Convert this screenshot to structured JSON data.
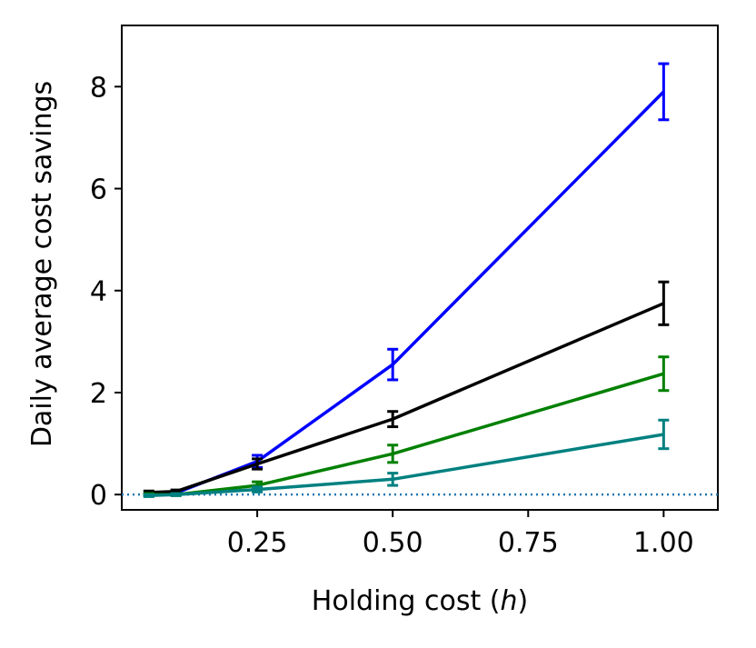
{
  "chart_data": {
    "type": "line",
    "title": "",
    "xlabel_prefix": "Holding cost (",
    "xlabel_var": "h",
    "xlabel_suffix": ")",
    "ylabel": "Daily average cost savings",
    "xlim": [
      0.0,
      1.1
    ],
    "ylim": [
      -0.3,
      9.2
    ],
    "x_ticks": [
      0.25,
      0.5,
      0.75,
      1.0
    ],
    "x_tick_labels": [
      "0.25",
      "0.50",
      "0.75",
      "1.00"
    ],
    "y_ticks": [
      0,
      2,
      4,
      6,
      8
    ],
    "y_tick_labels": [
      "0",
      "2",
      "4",
      "6",
      "8"
    ],
    "reference_line": {
      "y": 0,
      "style": "dotted",
      "color": "#1f77b4"
    },
    "series": [
      {
        "color": "#0000ff",
        "x": [
          0.05,
          0.1,
          0.25,
          0.5,
          1.0
        ],
        "y": [
          0.0,
          0.03,
          0.65,
          2.55,
          7.9
        ],
        "err": [
          0.02,
          0.03,
          0.12,
          0.3,
          0.55
        ]
      },
      {
        "color": "#000000",
        "x": [
          0.05,
          0.1,
          0.25,
          0.5,
          1.0
        ],
        "y": [
          0.04,
          0.06,
          0.6,
          1.48,
          3.75
        ],
        "err": [
          0.03,
          0.03,
          0.1,
          0.15,
          0.42
        ]
      },
      {
        "color": "#008000",
        "x": [
          0.05,
          0.1,
          0.25,
          0.5,
          1.0
        ],
        "y": [
          0.0,
          0.0,
          0.18,
          0.8,
          2.37
        ],
        "err": [
          0.02,
          0.02,
          0.07,
          0.17,
          0.33
        ]
      },
      {
        "color": "#008080",
        "x": [
          0.05,
          0.1,
          0.25,
          0.5,
          1.0
        ],
        "y": [
          -0.02,
          0.0,
          0.1,
          0.3,
          1.18
        ],
        "err": [
          0.02,
          0.02,
          0.05,
          0.12,
          0.28
        ]
      }
    ]
  }
}
